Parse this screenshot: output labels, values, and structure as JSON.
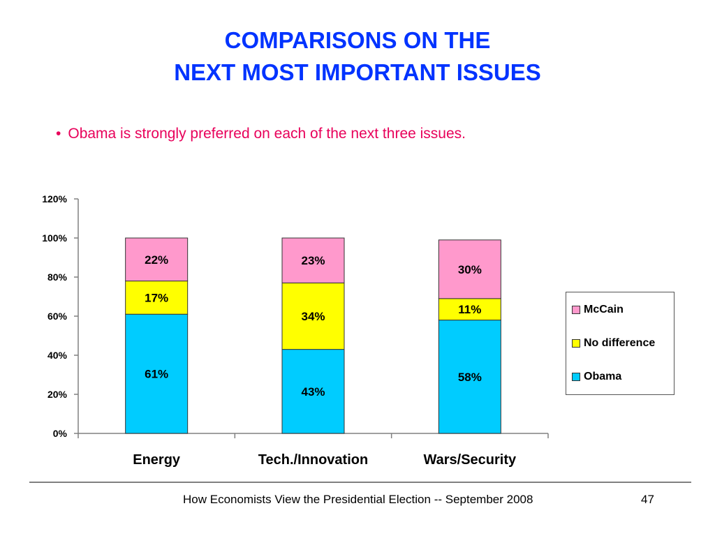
{
  "slide": {
    "title_line1": "COMPARISONS ON THE",
    "title_line2": "NEXT MOST IMPORTANT ISSUES",
    "bullet": "Obama is strongly preferred on each of the next three issues.",
    "bullet_marker": "•",
    "footer": "How Economists View the Presidential Election -- September 2008",
    "page_number": "47"
  },
  "chart_data": {
    "type": "bar",
    "stacked": true,
    "categories": [
      "Energy",
      "Tech./Innovation",
      "Wars/Security"
    ],
    "series": [
      {
        "name": "Obama",
        "values": [
          61,
          43,
          58
        ],
        "labels": [
          "61%",
          "43%",
          "58%"
        ],
        "color": "#00ccff"
      },
      {
        "name": "No difference",
        "values": [
          17,
          34,
          11
        ],
        "labels": [
          "17%",
          "34%",
          "11%"
        ],
        "color": "#ffff00"
      },
      {
        "name": "McCain",
        "values": [
          22,
          23,
          30
        ],
        "labels": [
          "22%",
          "23%",
          "30%"
        ],
        "color": "#ff99cc"
      }
    ],
    "yticks": [
      "0%",
      "20%",
      "40%",
      "60%",
      "80%",
      "100%",
      "120%"
    ],
    "ylim": [
      0,
      120
    ],
    "legend": [
      "McCain",
      "No difference",
      "Obama"
    ],
    "legend_position": "right",
    "grid": false,
    "xlabel": "",
    "ylabel": ""
  }
}
